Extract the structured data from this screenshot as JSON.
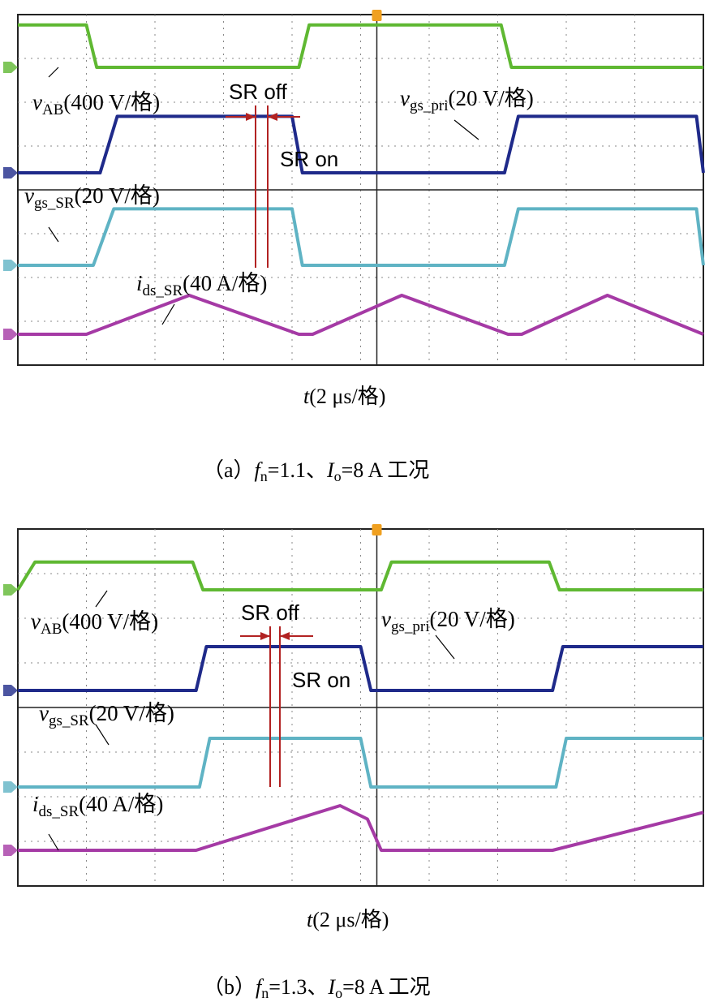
{
  "chart_data": [
    {
      "type": "line",
      "title": "",
      "x_scale_label": "2 μs/格",
      "xlabel_var": "t",
      "divisions": {
        "x": 10,
        "y": 8
      },
      "grid": true,
      "caption": {
        "prefix": "（a）",
        "fn_symbol": "f",
        "fn_sub": "n",
        "fn_value": "=1.1、",
        "io_symbol": "I",
        "io_sub": "o",
        "io_value": "=8 A 工况"
      },
      "x": [
        0,
        1.0,
        1.15,
        2.6,
        2.75,
        4.1,
        4.3,
        5.5,
        5.65,
        6.9,
        7.05,
        8.4,
        8.55,
        10
      ],
      "series": [
        {
          "id": "vAB",
          "var": "v",
          "sub": "AB",
          "scale": "(400 V/格)",
          "color": "#5fb832",
          "x": [
            0,
            1.0,
            1.15,
            4.1,
            4.25,
            7.05,
            7.2,
            10
          ],
          "y": [
            0.9,
            0.9,
            0,
            0,
            0.9,
            0.9,
            0,
            0
          ]
        },
        {
          "id": "vgs_pri",
          "var": "v",
          "sub": "gs_pri",
          "scale": "(20 V/格)",
          "color": "#1f2a8a",
          "x": [
            0,
            1.2,
            1.45,
            4.0,
            4.15,
            7.1,
            7.3,
            9.9,
            10
          ],
          "y": [
            0,
            0,
            1.2,
            1.2,
            0,
            0,
            1.2,
            1.2,
            0
          ]
        },
        {
          "id": "vgs_SR",
          "var": "v",
          "sub": "gs_SR",
          "scale": "(20 V/格)",
          "color": "#5fb3c4",
          "x": [
            0,
            1.1,
            1.4,
            4.0,
            4.15,
            7.1,
            7.3,
            9.9,
            10
          ],
          "y": [
            0,
            0,
            1.2,
            1.2,
            0,
            0,
            1.2,
            1.2,
            0
          ]
        },
        {
          "id": "ids_SR",
          "var": "i",
          "sub": "ds_SR",
          "scale": "(40 A/格)",
          "color": "#a53aa5",
          "x": [
            0,
            1.0,
            2.5,
            4.1,
            4.3,
            5.6,
            7.15,
            7.35,
            8.6,
            10
          ],
          "y": [
            0,
            0,
            1.0,
            0,
            0,
            1.0,
            0,
            0,
            1.0,
            0
          ]
        }
      ],
      "annotations": {
        "sr_off": "SR off",
        "sr_on": "SR on"
      }
    },
    {
      "type": "line",
      "title": "",
      "x_scale_label": "2 μs/格",
      "xlabel_var": "t",
      "divisions": {
        "x": 10,
        "y": 8
      },
      "grid": true,
      "caption": {
        "prefix": "（b）",
        "fn_symbol": "f",
        "fn_sub": "n",
        "fn_value": "=1.3、",
        "io_symbol": "I",
        "io_sub": "o",
        "io_value": "=8 A 工况"
      },
      "series": [
        {
          "id": "vAB",
          "var": "v",
          "sub": "AB",
          "scale": "(400 V/格)",
          "color": "#5fb832",
          "x": [
            0,
            0.25,
            2.55,
            2.7,
            5.3,
            5.45,
            7.75,
            7.9,
            10
          ],
          "y": [
            0,
            0.9,
            0.9,
            0,
            0,
            0.9,
            0.9,
            0,
            0
          ]
        },
        {
          "id": "vgs_pri",
          "var": "v",
          "sub": "gs_pri",
          "scale": "(20 V/格)",
          "color": "#1f2a8a",
          "x": [
            0,
            2.6,
            2.75,
            5.0,
            5.15,
            7.8,
            7.95,
            10
          ],
          "y": [
            0,
            0,
            1.2,
            1.2,
            0,
            0,
            1.2,
            1.2
          ]
        },
        {
          "id": "vgs_SR",
          "var": "v",
          "sub": "gs_SR",
          "scale": "(20 V/格)",
          "color": "#5fb3c4",
          "x": [
            0,
            2.65,
            2.8,
            5.0,
            5.15,
            7.85,
            8.0,
            10
          ],
          "y": [
            0,
            0,
            1.2,
            1.2,
            0,
            0,
            1.2,
            1.2
          ]
        },
        {
          "id": "ids_SR",
          "var": "i",
          "sub": "ds_SR",
          "scale": "(40 A/格)",
          "color": "#a53aa5",
          "x": [
            0,
            2.6,
            4.7,
            5.1,
            5.3,
            7.8,
            10
          ],
          "y": [
            0,
            0,
            1.0,
            0.7,
            0,
            0,
            0.85
          ]
        }
      ],
      "annotations": {
        "sr_off": "SR off",
        "sr_on": "SR on"
      }
    }
  ]
}
